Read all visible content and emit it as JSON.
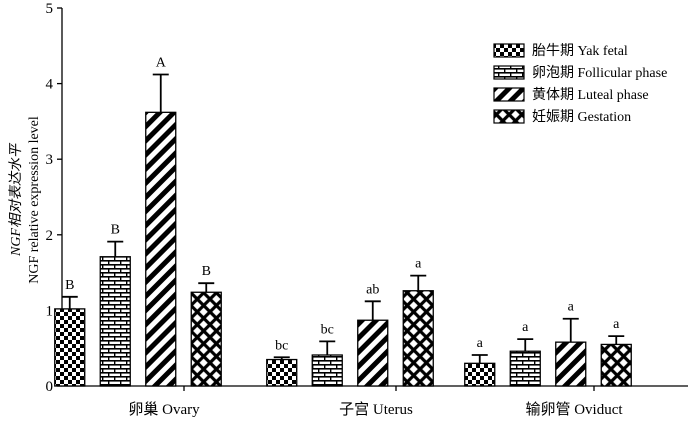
{
  "chart_data": {
    "type": "bar",
    "ylabel_line1": "NGF相对表达水平",
    "ylabel_line2": "NGF relative expression level",
    "ylim": [
      0,
      5
    ],
    "yticks": [
      "0",
      "1",
      "2",
      "3",
      "4",
      "5"
    ],
    "categories": [
      "卵巢 Ovary",
      "子宫 Uterus",
      "输卵管 Oviduct"
    ],
    "legend_position": "top-right",
    "series": [
      {
        "name": "胎牛期 Yak fetal",
        "pattern": "checker",
        "values": [
          1.02,
          0.35,
          0.3
        ],
        "errors": [
          0.16,
          0.03,
          0.11
        ],
        "labels": [
          "B",
          "bc",
          "a"
        ]
      },
      {
        "name": "卵泡期 Follicular phase",
        "pattern": "brick",
        "values": [
          1.71,
          0.41,
          0.46
        ],
        "errors": [
          0.2,
          0.18,
          0.16
        ],
        "labels": [
          "B",
          "bc",
          "a"
        ]
      },
      {
        "name": "黄体期 Luteal phase",
        "pattern": "diagonal",
        "values": [
          3.62,
          0.87,
          0.58
        ],
        "errors": [
          0.5,
          0.25,
          0.31
        ],
        "labels": [
          "A",
          "ab",
          "a"
        ]
      },
      {
        "name": "妊娠期 Gestation",
        "pattern": "diamond",
        "values": [
          1.24,
          1.26,
          0.55
        ],
        "errors": [
          0.12,
          0.2,
          0.11
        ],
        "labels": [
          "B",
          "a",
          "a"
        ]
      }
    ]
  }
}
